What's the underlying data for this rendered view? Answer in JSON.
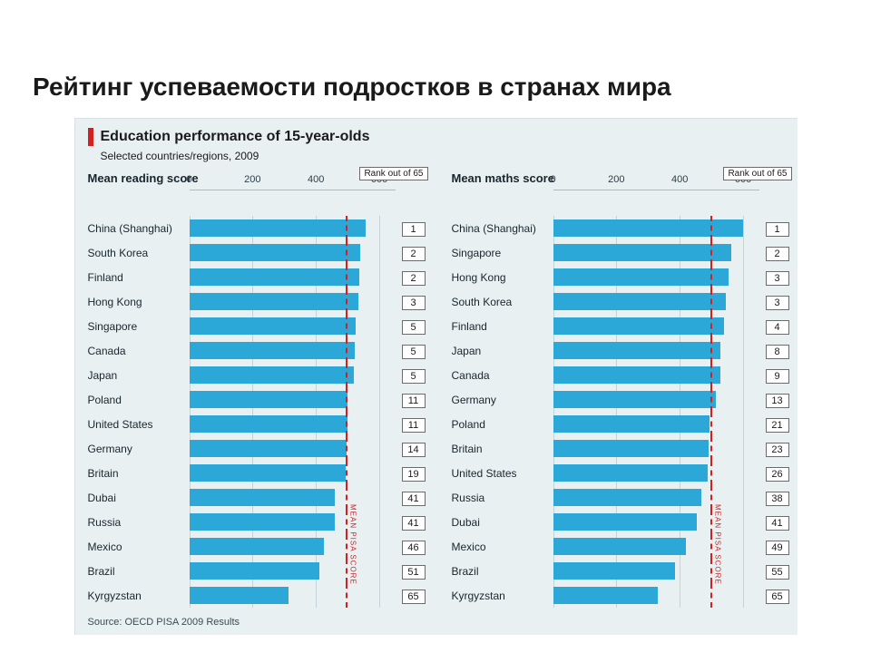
{
  "slide": {
    "title": "Рейтинг успеваемости подростков в странах мира"
  },
  "chart": {
    "accent_color": "#d42020",
    "panel_bg": "#e9f0f2",
    "title": "Education performance of 15-year-olds",
    "subtitle": "Selected countries/regions, 2009",
    "source": "Source: OECD PISA 2009 Results",
    "bar_color": "#2ca8d8",
    "grid_color": "#c4d3d9",
    "mean_line_color": "#d42020",
    "label_fontsize": 12,
    "title_fontsize": 16,
    "axis": {
      "min": 0,
      "max": 650,
      "ticks": [
        0,
        200,
        400,
        600
      ]
    },
    "rank_header": "Rank out of 65",
    "mean_line_label": "MEAN PISA SCORE",
    "subcharts": [
      {
        "title": "Mean reading score",
        "mean_value": 493,
        "rows": [
          {
            "label": "China (Shanghai)",
            "value": 556,
            "rank": "1"
          },
          {
            "label": "South Korea",
            "value": 539,
            "rank": "2"
          },
          {
            "label": "Finland",
            "value": 536,
            "rank": "2"
          },
          {
            "label": "Hong Kong",
            "value": 533,
            "rank": "3"
          },
          {
            "label": "Singapore",
            "value": 526,
            "rank": "5"
          },
          {
            "label": "Canada",
            "value": 524,
            "rank": "5"
          },
          {
            "label": "Japan",
            "value": 520,
            "rank": "5"
          },
          {
            "label": "Poland",
            "value": 500,
            "rank": "11"
          },
          {
            "label": "United States",
            "value": 500,
            "rank": "11"
          },
          {
            "label": "Germany",
            "value": 497,
            "rank": "14"
          },
          {
            "label": "Britain",
            "value": 494,
            "rank": "19"
          },
          {
            "label": "Dubai",
            "value": 459,
            "rank": "41"
          },
          {
            "label": "Russia",
            "value": 459,
            "rank": "41"
          },
          {
            "label": "Mexico",
            "value": 425,
            "rank": "46"
          },
          {
            "label": "Brazil",
            "value": 412,
            "rank": "51"
          },
          {
            "label": "Kyrgyzstan",
            "value": 314,
            "rank": "65"
          }
        ]
      },
      {
        "title": "Mean maths score",
        "mean_value": 496,
        "rows": [
          {
            "label": "China (Shanghai)",
            "value": 600,
            "rank": "1"
          },
          {
            "label": "Singapore",
            "value": 562,
            "rank": "2"
          },
          {
            "label": "Hong Kong",
            "value": 555,
            "rank": "3"
          },
          {
            "label": "South Korea",
            "value": 546,
            "rank": "3"
          },
          {
            "label": "Finland",
            "value": 541,
            "rank": "4"
          },
          {
            "label": "Japan",
            "value": 529,
            "rank": "8"
          },
          {
            "label": "Canada",
            "value": 527,
            "rank": "9"
          },
          {
            "label": "Germany",
            "value": 513,
            "rank": "13"
          },
          {
            "label": "Poland",
            "value": 495,
            "rank": "21"
          },
          {
            "label": "Britain",
            "value": 492,
            "rank": "23"
          },
          {
            "label": "United States",
            "value": 487,
            "rank": "26"
          },
          {
            "label": "Russia",
            "value": 468,
            "rank": "38"
          },
          {
            "label": "Dubai",
            "value": 453,
            "rank": "41"
          },
          {
            "label": "Mexico",
            "value": 419,
            "rank": "49"
          },
          {
            "label": "Brazil",
            "value": 386,
            "rank": "55"
          },
          {
            "label": "Kyrgyzstan",
            "value": 331,
            "rank": "65"
          }
        ]
      }
    ]
  }
}
